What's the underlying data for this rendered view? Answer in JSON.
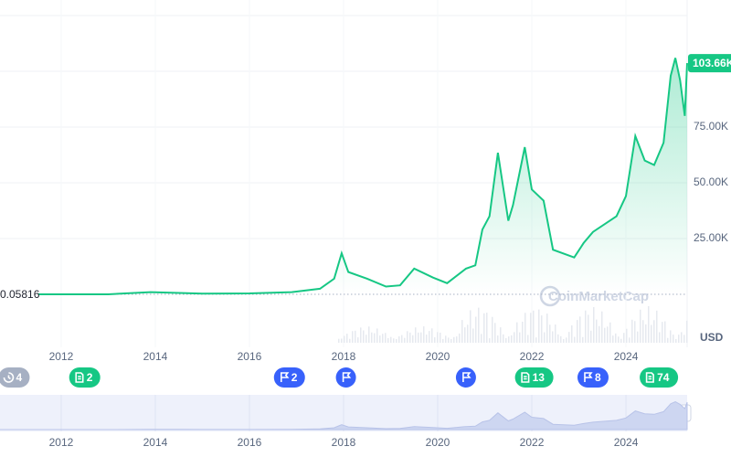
{
  "chart_data": {
    "type": "line",
    "color": "#16c784",
    "x": [
      2010.7,
      2011.4,
      2012.0,
      2013.0,
      2013.9,
      2014.5,
      2015.0,
      2016.0,
      2016.9,
      2017.5,
      2017.8,
      2017.96,
      2018.1,
      2018.5,
      2018.9,
      2019.2,
      2019.5,
      2019.9,
      2020.2,
      2020.6,
      2020.8,
      2020.95,
      2021.1,
      2021.28,
      2021.5,
      2021.6,
      2021.85,
      2022.0,
      2022.25,
      2022.45,
      2022.9,
      2023.1,
      2023.3,
      2023.8,
      2024.0,
      2024.2,
      2024.4,
      2024.6,
      2024.8,
      2024.95,
      2025.05,
      2025.15,
      2025.25,
      2025.3
    ],
    "values": [
      0.06,
      10,
      5,
      13,
      1000,
      600,
      300,
      430,
      1000,
      2500,
      7000,
      18400,
      10000,
      7000,
      3500,
      4000,
      11500,
      7500,
      5000,
      11500,
      13000,
      29000,
      35000,
      63500,
      33000,
      40000,
      66000,
      47000,
      42000,
      20000,
      16500,
      23000,
      28000,
      35000,
      44000,
      71000,
      60000,
      58000,
      68000,
      98000,
      106000,
      96000,
      80000,
      103660
    ],
    "start_label": "0.05816",
    "last_label": "103.66K",
    "currency": "USD",
    "watermark": "CoinMarketCap",
    "xlim": [
      2010.7,
      2025.3
    ],
    "xticks": [
      2012,
      2014,
      2016,
      2018,
      2020,
      2022,
      2024
    ],
    "ylim": [
      0,
      125000
    ],
    "yticks": [
      {
        "value": 25000,
        "label": "25.00K"
      },
      {
        "value": 50000,
        "label": "50.00K"
      },
      {
        "value": 75000,
        "label": "75.00K"
      }
    ],
    "events": [
      {
        "x": 2011.0,
        "icon": "history",
        "color": "#a6b0c3",
        "label": "4"
      },
      {
        "x": 2012.5,
        "icon": "doc",
        "color": "#16c784",
        "label": "2"
      },
      {
        "x": 2016.85,
        "icon": "flag",
        "color": "#3861fb",
        "label": "2"
      },
      {
        "x": 2018.05,
        "icon": "flag",
        "color": "#3861fb"
      },
      {
        "x": 2020.6,
        "icon": "flag",
        "color": "#3861fb"
      },
      {
        "x": 2022.05,
        "icon": "doc",
        "color": "#16c784",
        "label": "13"
      },
      {
        "x": 2023.3,
        "icon": "flag",
        "color": "#3861fb",
        "label": "8"
      },
      {
        "x": 2024.7,
        "icon": "doc",
        "color": "#16c784",
        "label": "74"
      }
    ]
  }
}
